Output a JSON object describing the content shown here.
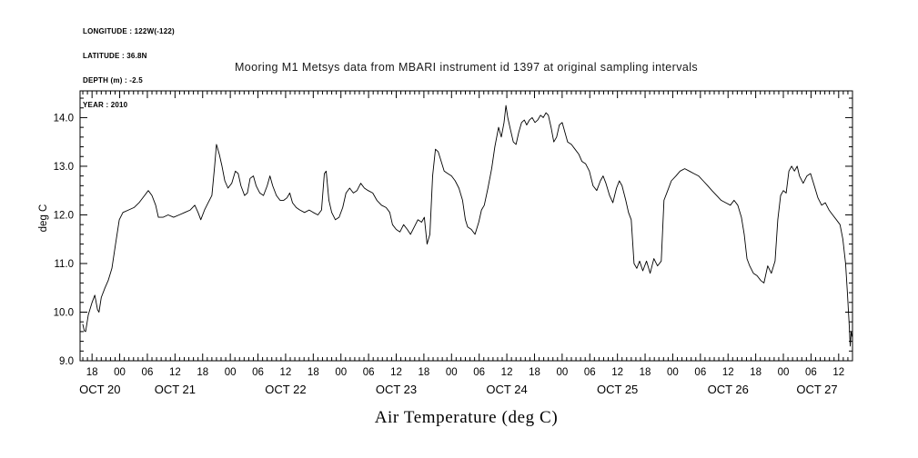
{
  "meta": {
    "lines": [
      "LONGITUDE : 122W(-122)",
      "LATITUDE : 36.8N",
      "DEPTH (m) : -2.5",
      "YEAR : 2010"
    ]
  },
  "chart_data": {
    "type": "line",
    "title": "Mooring M1 Metsys data from MBARI instrument id 1397 at original sampling intervals",
    "xlabel": "Air Temperature (deg C)",
    "ylabel": "deg C",
    "x_unit": "hours since 2010-10-20 00:00, tick labels show hour of day",
    "x_range": [
      15.4,
      183.0
    ],
    "y_range": [
      9.0,
      14.55
    ],
    "grid": false,
    "legend": "none",
    "line_color": "#000000",
    "y_ticks": [
      9.0,
      10.0,
      11.0,
      12.0,
      13.0,
      14.0
    ],
    "y_tick_labels": [
      "9.0",
      "10.0",
      "11.0",
      "12.0",
      "13.0",
      "14.0"
    ],
    "y_minor_step": 0.2,
    "x_minor_step": 1,
    "x_tick_hours": [
      18,
      24,
      30,
      36,
      42,
      48,
      54,
      60,
      66,
      72,
      78,
      84,
      90,
      96,
      102,
      108,
      114,
      120,
      126,
      132,
      138,
      144,
      150,
      156,
      162,
      168,
      174,
      180
    ],
    "x_tick_labels": [
      "18",
      "00",
      "06",
      "12",
      "18",
      "00",
      "06",
      "12",
      "18",
      "00",
      "06",
      "12",
      "18",
      "00",
      "06",
      "12",
      "18",
      "00",
      "06",
      "12",
      "18",
      "00",
      "06",
      "12",
      "18",
      "00",
      "06",
      "12"
    ],
    "date_labels": [
      {
        "label": "OCT 20",
        "hour": 19.7
      },
      {
        "label": "OCT 21",
        "hour": 36.0
      },
      {
        "label": "OCT 22",
        "hour": 60.0
      },
      {
        "label": "OCT 23",
        "hour": 84.0
      },
      {
        "label": "OCT 24",
        "hour": 108.0
      },
      {
        "label": "OCT 25",
        "hour": 132.0
      },
      {
        "label": "OCT 26",
        "hour": 156.0
      },
      {
        "label": "OCT 27",
        "hour": 175.3
      }
    ],
    "series": [
      {
        "name": "Air Temperature",
        "points": [
          [
            16.0,
            9.75
          ],
          [
            16.3,
            9.62
          ],
          [
            16.6,
            9.6
          ],
          [
            17.2,
            9.95
          ],
          [
            18.0,
            10.2
          ],
          [
            18.6,
            10.35
          ],
          [
            19.2,
            10.05
          ],
          [
            19.5,
            10.0
          ],
          [
            20.0,
            10.3
          ],
          [
            20.8,
            10.5
          ],
          [
            21.5,
            10.65
          ],
          [
            22.3,
            10.9
          ],
          [
            23.1,
            11.4
          ],
          [
            23.9,
            11.9
          ],
          [
            24.7,
            12.05
          ],
          [
            25.9,
            12.1
          ],
          [
            27.1,
            12.15
          ],
          [
            28.2,
            12.25
          ],
          [
            29.4,
            12.4
          ],
          [
            30.2,
            12.5
          ],
          [
            31.0,
            12.4
          ],
          [
            31.8,
            12.2
          ],
          [
            32.4,
            11.95
          ],
          [
            33.4,
            11.95
          ],
          [
            34.5,
            12.0
          ],
          [
            35.7,
            11.95
          ],
          [
            36.9,
            12.0
          ],
          [
            38.1,
            12.05
          ],
          [
            39.3,
            12.1
          ],
          [
            40.3,
            12.2
          ],
          [
            41.0,
            12.05
          ],
          [
            41.6,
            11.9
          ],
          [
            42.4,
            12.1
          ],
          [
            43.2,
            12.25
          ],
          [
            44.0,
            12.4
          ],
          [
            44.6,
            13.0
          ],
          [
            45.0,
            13.45
          ],
          [
            45.6,
            13.25
          ],
          [
            46.2,
            13.0
          ],
          [
            46.8,
            12.7
          ],
          [
            47.5,
            12.55
          ],
          [
            48.3,
            12.65
          ],
          [
            49.1,
            12.9
          ],
          [
            49.7,
            12.85
          ],
          [
            50.3,
            12.6
          ],
          [
            51.1,
            12.4
          ],
          [
            51.7,
            12.45
          ],
          [
            52.3,
            12.75
          ],
          [
            53.0,
            12.8
          ],
          [
            53.6,
            12.6
          ],
          [
            54.4,
            12.45
          ],
          [
            55.2,
            12.4
          ],
          [
            56.0,
            12.6
          ],
          [
            56.6,
            12.8
          ],
          [
            57.2,
            12.6
          ],
          [
            58.0,
            12.4
          ],
          [
            58.8,
            12.3
          ],
          [
            59.6,
            12.3
          ],
          [
            60.3,
            12.35
          ],
          [
            60.9,
            12.45
          ],
          [
            61.5,
            12.25
          ],
          [
            62.3,
            12.15
          ],
          [
            63.1,
            12.1
          ],
          [
            64.1,
            12.05
          ],
          [
            65.1,
            12.1
          ],
          [
            66.0,
            12.05
          ],
          [
            67.0,
            12.0
          ],
          [
            67.8,
            12.1
          ],
          [
            68.4,
            12.85
          ],
          [
            68.8,
            12.9
          ],
          [
            69.4,
            12.3
          ],
          [
            70.0,
            12.05
          ],
          [
            70.8,
            11.9
          ],
          [
            71.6,
            11.95
          ],
          [
            72.4,
            12.15
          ],
          [
            73.1,
            12.45
          ],
          [
            73.9,
            12.55
          ],
          [
            74.7,
            12.45
          ],
          [
            75.5,
            12.5
          ],
          [
            76.3,
            12.65
          ],
          [
            77.1,
            12.55
          ],
          [
            77.9,
            12.5
          ],
          [
            78.9,
            12.45
          ],
          [
            79.8,
            12.3
          ],
          [
            80.8,
            12.2
          ],
          [
            81.8,
            12.15
          ],
          [
            82.6,
            12.05
          ],
          [
            83.2,
            11.8
          ],
          [
            84.0,
            11.7
          ],
          [
            84.8,
            11.65
          ],
          [
            85.6,
            11.8
          ],
          [
            86.4,
            11.7
          ],
          [
            87.1,
            11.6
          ],
          [
            87.9,
            11.75
          ],
          [
            88.7,
            11.9
          ],
          [
            89.5,
            11.85
          ],
          [
            90.1,
            11.95
          ],
          [
            90.7,
            11.4
          ],
          [
            91.3,
            11.6
          ],
          [
            91.9,
            12.8
          ],
          [
            92.5,
            13.35
          ],
          [
            93.1,
            13.3
          ],
          [
            93.6,
            13.15
          ],
          [
            94.4,
            12.9
          ],
          [
            95.2,
            12.85
          ],
          [
            96.0,
            12.8
          ],
          [
            96.8,
            12.7
          ],
          [
            97.6,
            12.55
          ],
          [
            98.4,
            12.3
          ],
          [
            99.0,
            11.9
          ],
          [
            99.5,
            11.75
          ],
          [
            100.3,
            11.7
          ],
          [
            101.1,
            11.6
          ],
          [
            101.9,
            11.85
          ],
          [
            102.5,
            12.1
          ],
          [
            103.1,
            12.2
          ],
          [
            103.9,
            12.55
          ],
          [
            104.7,
            12.95
          ],
          [
            105.4,
            13.4
          ],
          [
            106.2,
            13.8
          ],
          [
            106.8,
            13.6
          ],
          [
            107.4,
            13.9
          ],
          [
            107.8,
            14.25
          ],
          [
            108.2,
            14.0
          ],
          [
            108.8,
            13.75
          ],
          [
            109.4,
            13.5
          ],
          [
            110.0,
            13.45
          ],
          [
            110.6,
            13.7
          ],
          [
            111.2,
            13.9
          ],
          [
            111.8,
            13.95
          ],
          [
            112.3,
            13.85
          ],
          [
            112.9,
            13.95
          ],
          [
            113.5,
            14.0
          ],
          [
            114.1,
            13.9
          ],
          [
            114.7,
            13.95
          ],
          [
            115.3,
            14.05
          ],
          [
            115.9,
            14.0
          ],
          [
            116.5,
            14.1
          ],
          [
            117.0,
            14.05
          ],
          [
            117.6,
            13.8
          ],
          [
            118.2,
            13.5
          ],
          [
            118.8,
            13.6
          ],
          [
            119.4,
            13.85
          ],
          [
            120.0,
            13.9
          ],
          [
            120.6,
            13.7
          ],
          [
            121.2,
            13.5
          ],
          [
            122.0,
            13.45
          ],
          [
            122.8,
            13.35
          ],
          [
            123.6,
            13.25
          ],
          [
            124.3,
            13.1
          ],
          [
            125.1,
            13.05
          ],
          [
            125.9,
            12.9
          ],
          [
            126.7,
            12.6
          ],
          [
            127.5,
            12.5
          ],
          [
            128.3,
            12.7
          ],
          [
            128.9,
            12.8
          ],
          [
            129.5,
            12.65
          ],
          [
            130.3,
            12.4
          ],
          [
            131.0,
            12.25
          ],
          [
            131.8,
            12.55
          ],
          [
            132.4,
            12.7
          ],
          [
            133.0,
            12.6
          ],
          [
            133.8,
            12.3
          ],
          [
            134.4,
            12.05
          ],
          [
            135.0,
            11.9
          ],
          [
            135.6,
            11.0
          ],
          [
            136.2,
            10.9
          ],
          [
            136.8,
            11.05
          ],
          [
            137.5,
            10.85
          ],
          [
            138.3,
            11.05
          ],
          [
            139.1,
            10.8
          ],
          [
            139.9,
            11.1
          ],
          [
            140.7,
            10.95
          ],
          [
            141.5,
            11.05
          ],
          [
            142.1,
            12.3
          ],
          [
            142.9,
            12.5
          ],
          [
            143.7,
            12.7
          ],
          [
            144.7,
            12.8
          ],
          [
            145.6,
            12.9
          ],
          [
            146.6,
            12.95
          ],
          [
            147.6,
            12.9
          ],
          [
            148.6,
            12.85
          ],
          [
            149.6,
            12.8
          ],
          [
            150.6,
            12.7
          ],
          [
            151.6,
            12.6
          ],
          [
            152.5,
            12.5
          ],
          [
            153.5,
            12.4
          ],
          [
            154.5,
            12.3
          ],
          [
            155.5,
            12.25
          ],
          [
            156.5,
            12.2
          ],
          [
            157.3,
            12.3
          ],
          [
            158.1,
            12.2
          ],
          [
            158.9,
            11.95
          ],
          [
            159.5,
            11.6
          ],
          [
            160.1,
            11.1
          ],
          [
            160.7,
            10.95
          ],
          [
            161.5,
            10.8
          ],
          [
            162.3,
            10.75
          ],
          [
            163.1,
            10.65
          ],
          [
            163.8,
            10.6
          ],
          [
            164.6,
            10.95
          ],
          [
            165.4,
            10.8
          ],
          [
            166.2,
            11.05
          ],
          [
            166.8,
            11.9
          ],
          [
            167.4,
            12.4
          ],
          [
            168.0,
            12.5
          ],
          [
            168.6,
            12.45
          ],
          [
            169.2,
            12.9
          ],
          [
            169.8,
            13.0
          ],
          [
            170.4,
            12.9
          ],
          [
            171.0,
            13.0
          ],
          [
            171.5,
            12.8
          ],
          [
            172.3,
            12.65
          ],
          [
            173.1,
            12.8
          ],
          [
            173.9,
            12.85
          ],
          [
            174.7,
            12.6
          ],
          [
            175.5,
            12.35
          ],
          [
            176.3,
            12.2
          ],
          [
            177.1,
            12.25
          ],
          [
            177.9,
            12.1
          ],
          [
            178.7,
            12.0
          ],
          [
            179.5,
            11.9
          ],
          [
            180.3,
            11.8
          ],
          [
            180.9,
            11.5
          ],
          [
            181.5,
            11.0
          ],
          [
            181.9,
            10.4
          ],
          [
            182.3,
            9.7
          ],
          [
            182.5,
            9.3
          ],
          [
            182.7,
            9.6
          ],
          [
            182.9,
            9.5
          ]
        ]
      }
    ]
  }
}
